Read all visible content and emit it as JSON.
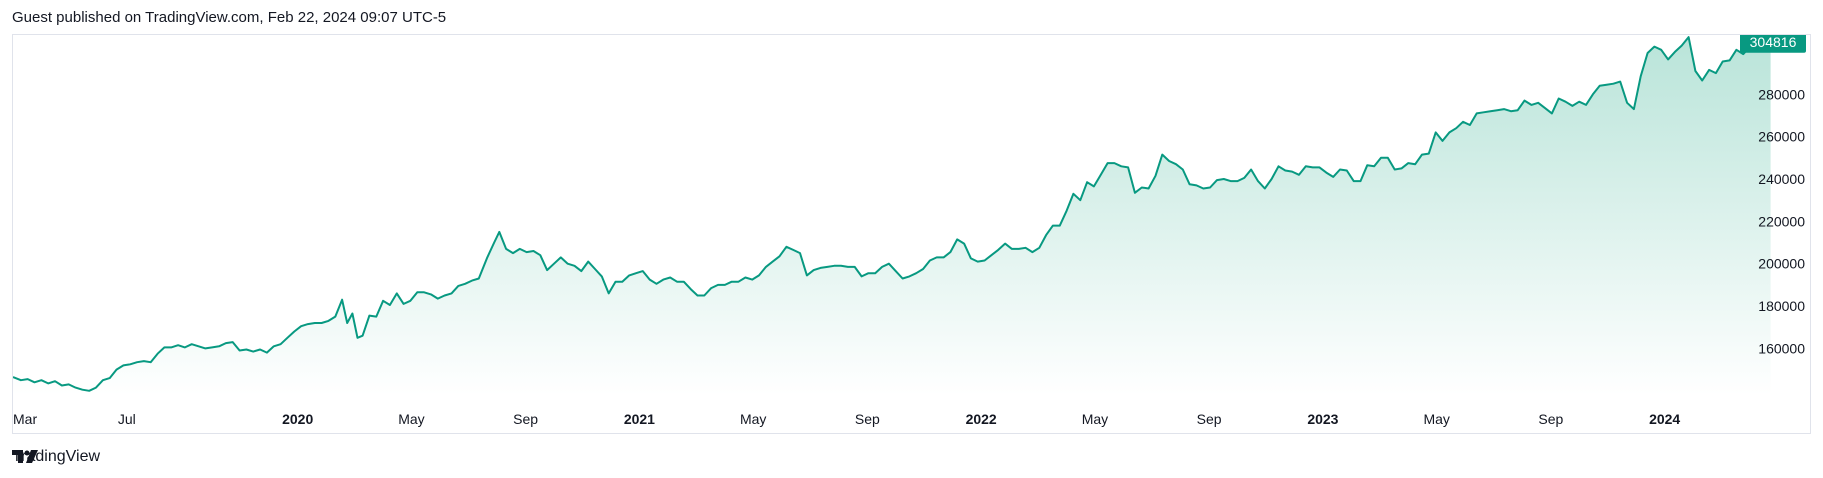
{
  "header": {
    "text": "Guest published on TradingView.com, Feb 22, 2024 09:07 UTC-5"
  },
  "footer": {
    "brand": "TradingView",
    "logo_icon": "tradingview-logo-icon"
  },
  "colors": {
    "line": "#089981",
    "fill_top": "#b9e4d9",
    "fill_bottom": "#ffffff",
    "badge": "#089981"
  },
  "chart_data": {
    "type": "area",
    "title": "",
    "last_value_label": "304816",
    "ylim": [
      138000,
      308000
    ],
    "y_ticks": [
      "160000",
      "180000",
      "200000",
      "220000",
      "240000",
      "260000",
      "280000"
    ],
    "y_tick_values": [
      160000,
      180000,
      200000,
      220000,
      240000,
      260000,
      280000
    ],
    "x_ticks": [
      {
        "label": "Mar",
        "t": 2019.167,
        "bold": false
      },
      {
        "label": "Jul",
        "t": 2019.5,
        "bold": false
      },
      {
        "label": "2020",
        "t": 2020.0,
        "bold": true
      },
      {
        "label": "May",
        "t": 2020.333,
        "bold": false
      },
      {
        "label": "Sep",
        "t": 2020.667,
        "bold": false
      },
      {
        "label": "2021",
        "t": 2021.0,
        "bold": true
      },
      {
        "label": "May",
        "t": 2021.333,
        "bold": false
      },
      {
        "label": "Sep",
        "t": 2021.667,
        "bold": false
      },
      {
        "label": "2022",
        "t": 2022.0,
        "bold": true
      },
      {
        "label": "May",
        "t": 2022.333,
        "bold": false
      },
      {
        "label": "Sep",
        "t": 2022.667,
        "bold": false
      },
      {
        "label": "2023",
        "t": 2023.0,
        "bold": true
      },
      {
        "label": "May",
        "t": 2023.333,
        "bold": false
      },
      {
        "label": "Sep",
        "t": 2023.667,
        "bold": false
      },
      {
        "label": "2024",
        "t": 2024.0,
        "bold": true
      }
    ],
    "xlim": [
      2019.167,
      2024.2
    ],
    "series": [
      {
        "points": [
          [
            2019.167,
            146500
          ],
          [
            2019.19,
            145000
          ],
          [
            2019.21,
            145500
          ],
          [
            2019.23,
            144000
          ],
          [
            2019.25,
            145000
          ],
          [
            2019.27,
            143500
          ],
          [
            2019.29,
            144500
          ],
          [
            2019.31,
            142500
          ],
          [
            2019.33,
            143000
          ],
          [
            2019.35,
            141500
          ],
          [
            2019.37,
            140500
          ],
          [
            2019.39,
            140000
          ],
          [
            2019.41,
            141500
          ],
          [
            2019.43,
            145000
          ],
          [
            2019.45,
            146000
          ],
          [
            2019.47,
            150000
          ],
          [
            2019.49,
            152000
          ],
          [
            2019.51,
            152500
          ],
          [
            2019.53,
            153500
          ],
          [
            2019.55,
            154000
          ],
          [
            2019.57,
            153500
          ],
          [
            2019.59,
            157500
          ],
          [
            2019.61,
            160500
          ],
          [
            2019.63,
            160500
          ],
          [
            2019.65,
            161500
          ],
          [
            2019.67,
            160500
          ],
          [
            2019.69,
            162000
          ],
          [
            2019.71,
            161000
          ],
          [
            2019.73,
            160000
          ],
          [
            2019.75,
            160500
          ],
          [
            2019.77,
            161000
          ],
          [
            2019.79,
            162500
          ],
          [
            2019.81,
            163000
          ],
          [
            2019.83,
            159000
          ],
          [
            2019.85,
            159500
          ],
          [
            2019.87,
            158500
          ],
          [
            2019.89,
            159500
          ],
          [
            2019.91,
            158000
          ],
          [
            2019.93,
            161000
          ],
          [
            2019.95,
            162000
          ],
          [
            2019.97,
            165000
          ],
          [
            2019.99,
            168000
          ],
          [
            2020.01,
            170500
          ],
          [
            2020.03,
            171500
          ],
          [
            2020.05,
            172000
          ],
          [
            2020.07,
            172000
          ],
          [
            2020.09,
            173000
          ],
          [
            2020.11,
            175000
          ],
          [
            2020.13,
            183000
          ],
          [
            2020.145,
            172000
          ],
          [
            2020.16,
            176500
          ],
          [
            2020.175,
            165000
          ],
          [
            2020.19,
            166000
          ],
          [
            2020.21,
            175500
          ],
          [
            2020.23,
            175000
          ],
          [
            2020.25,
            182500
          ],
          [
            2020.27,
            180500
          ],
          [
            2020.29,
            186000
          ],
          [
            2020.31,
            181000
          ],
          [
            2020.33,
            182500
          ],
          [
            2020.35,
            186500
          ],
          [
            2020.37,
            186500
          ],
          [
            2020.39,
            185500
          ],
          [
            2020.41,
            183500
          ],
          [
            2020.43,
            185000
          ],
          [
            2020.45,
            186000
          ],
          [
            2020.47,
            189500
          ],
          [
            2020.49,
            190500
          ],
          [
            2020.51,
            192000
          ],
          [
            2020.53,
            193000
          ],
          [
            2020.555,
            203000
          ],
          [
            2020.575,
            210000
          ],
          [
            2020.59,
            215000
          ],
          [
            2020.61,
            207000
          ],
          [
            2020.63,
            205000
          ],
          [
            2020.65,
            207000
          ],
          [
            2020.67,
            205500
          ],
          [
            2020.69,
            206000
          ],
          [
            2020.71,
            204000
          ],
          [
            2020.73,
            197000
          ],
          [
            2020.75,
            200000
          ],
          [
            2020.77,
            203000
          ],
          [
            2020.79,
            200000
          ],
          [
            2020.81,
            199000
          ],
          [
            2020.83,
            196500
          ],
          [
            2020.85,
            201000
          ],
          [
            2020.87,
            197500
          ],
          [
            2020.89,
            194000
          ],
          [
            2020.91,
            186000
          ],
          [
            2020.93,
            191500
          ],
          [
            2020.95,
            191500
          ],
          [
            2020.97,
            194500
          ],
          [
            2020.99,
            195500
          ],
          [
            2021.01,
            196500
          ],
          [
            2021.03,
            192500
          ],
          [
            2021.05,
            190500
          ],
          [
            2021.07,
            192500
          ],
          [
            2021.09,
            193500
          ],
          [
            2021.11,
            191500
          ],
          [
            2021.13,
            191500
          ],
          [
            2021.15,
            188000
          ],
          [
            2021.17,
            185000
          ],
          [
            2021.19,
            185000
          ],
          [
            2021.21,
            188500
          ],
          [
            2021.23,
            190000
          ],
          [
            2021.25,
            190000
          ],
          [
            2021.27,
            191500
          ],
          [
            2021.29,
            191500
          ],
          [
            2021.31,
            193500
          ],
          [
            2021.33,
            192500
          ],
          [
            2021.35,
            194500
          ],
          [
            2021.37,
            198500
          ],
          [
            2021.39,
            201000
          ],
          [
            2021.41,
            203500
          ],
          [
            2021.43,
            208000
          ],
          [
            2021.45,
            206500
          ],
          [
            2021.47,
            205000
          ],
          [
            2021.49,
            194500
          ],
          [
            2021.51,
            197000
          ],
          [
            2021.53,
            198000
          ],
          [
            2021.55,
            198500
          ],
          [
            2021.57,
            199000
          ],
          [
            2021.59,
            199000
          ],
          [
            2021.61,
            198500
          ],
          [
            2021.63,
            198500
          ],
          [
            2021.65,
            194000
          ],
          [
            2021.67,
            195500
          ],
          [
            2021.69,
            195500
          ],
          [
            2021.71,
            198500
          ],
          [
            2021.73,
            200000
          ],
          [
            2021.75,
            196500
          ],
          [
            2021.77,
            193000
          ],
          [
            2021.79,
            194000
          ],
          [
            2021.81,
            195500
          ],
          [
            2021.83,
            197500
          ],
          [
            2021.85,
            201500
          ],
          [
            2021.87,
            203000
          ],
          [
            2021.89,
            203000
          ],
          [
            2021.91,
            205500
          ],
          [
            2021.93,
            211500
          ],
          [
            2021.95,
            209500
          ],
          [
            2021.97,
            202500
          ],
          [
            2021.99,
            201000
          ],
          [
            2022.01,
            201500
          ],
          [
            2022.03,
            204000
          ],
          [
            2022.05,
            206500
          ],
          [
            2022.07,
            209500
          ],
          [
            2022.09,
            207000
          ],
          [
            2022.11,
            207000
          ],
          [
            2022.13,
            207500
          ],
          [
            2022.15,
            205500
          ],
          [
            2022.17,
            207500
          ],
          [
            2022.19,
            213500
          ],
          [
            2022.21,
            218000
          ],
          [
            2022.23,
            218000
          ],
          [
            2022.25,
            225000
          ],
          [
            2022.27,
            233000
          ],
          [
            2022.29,
            230000
          ],
          [
            2022.31,
            238500
          ],
          [
            2022.33,
            236500
          ],
          [
            2022.35,
            242000
          ],
          [
            2022.37,
            247500
          ],
          [
            2022.39,
            247500
          ],
          [
            2022.41,
            246000
          ],
          [
            2022.43,
            245500
          ],
          [
            2022.45,
            233500
          ],
          [
            2022.47,
            236000
          ],
          [
            2022.49,
            235500
          ],
          [
            2022.51,
            241500
          ],
          [
            2022.53,
            251500
          ],
          [
            2022.55,
            248500
          ],
          [
            2022.57,
            247000
          ],
          [
            2022.59,
            244500
          ],
          [
            2022.61,
            237500
          ],
          [
            2022.63,
            237000
          ],
          [
            2022.65,
            235500
          ],
          [
            2022.67,
            236000
          ],
          [
            2022.69,
            239500
          ],
          [
            2022.71,
            240000
          ],
          [
            2022.73,
            239000
          ],
          [
            2022.75,
            239000
          ],
          [
            2022.77,
            240500
          ],
          [
            2022.79,
            244500
          ],
          [
            2022.81,
            239000
          ],
          [
            2022.83,
            235500
          ],
          [
            2022.85,
            240000
          ],
          [
            2022.87,
            246000
          ],
          [
            2022.89,
            244000
          ],
          [
            2022.91,
            243500
          ],
          [
            2022.93,
            242000
          ],
          [
            2022.95,
            246000
          ],
          [
            2022.97,
            245500
          ],
          [
            2022.99,
            245500
          ],
          [
            2023.01,
            243000
          ],
          [
            2023.03,
            241000
          ],
          [
            2023.05,
            244500
          ],
          [
            2023.07,
            244000
          ],
          [
            2023.09,
            239000
          ],
          [
            2023.11,
            239000
          ],
          [
            2023.13,
            246500
          ],
          [
            2023.15,
            246000
          ],
          [
            2023.17,
            250000
          ],
          [
            2023.19,
            250000
          ],
          [
            2023.21,
            244500
          ],
          [
            2023.23,
            245000
          ],
          [
            2023.25,
            247500
          ],
          [
            2023.27,
            247000
          ],
          [
            2023.29,
            251500
          ],
          [
            2023.31,
            252000
          ],
          [
            2023.33,
            262000
          ],
          [
            2023.35,
            258000
          ],
          [
            2023.37,
            262000
          ],
          [
            2023.39,
            264000
          ],
          [
            2023.41,
            267000
          ],
          [
            2023.43,
            265500
          ],
          [
            2023.45,
            271000
          ],
          [
            2023.47,
            271500
          ],
          [
            2023.49,
            272000
          ],
          [
            2023.51,
            272500
          ],
          [
            2023.53,
            273000
          ],
          [
            2023.55,
            272000
          ],
          [
            2023.57,
            272500
          ],
          [
            2023.59,
            277000
          ],
          [
            2023.61,
            275000
          ],
          [
            2023.63,
            276000
          ],
          [
            2023.65,
            273500
          ],
          [
            2023.67,
            271000
          ],
          [
            2023.69,
            278000
          ],
          [
            2023.71,
            276500
          ],
          [
            2023.73,
            274500
          ],
          [
            2023.75,
            276500
          ],
          [
            2023.77,
            275000
          ],
          [
            2023.79,
            280000
          ],
          [
            2023.81,
            284000
          ],
          [
            2023.83,
            284500
          ],
          [
            2023.85,
            285000
          ],
          [
            2023.87,
            286000
          ],
          [
            2023.89,
            276000
          ],
          [
            2023.91,
            273000
          ],
          [
            2023.93,
            288500
          ],
          [
            2023.95,
            299500
          ],
          [
            2023.97,
            302500
          ],
          [
            2023.99,
            301000
          ],
          [
            2024.01,
            296500
          ],
          [
            2024.03,
            300000
          ],
          [
            2024.05,
            303000
          ],
          [
            2024.07,
            307000
          ],
          [
            2024.09,
            291000
          ],
          [
            2024.11,
            286500
          ],
          [
            2024.13,
            291500
          ],
          [
            2024.15,
            290000
          ],
          [
            2024.17,
            295500
          ],
          [
            2024.19,
            296000
          ],
          [
            2024.21,
            301000
          ],
          [
            2024.23,
            299000
          ],
          [
            2024.25,
            302500
          ],
          [
            2024.27,
            302000
          ],
          [
            2024.29,
            302500
          ],
          [
            2024.31,
            304816
          ]
        ]
      }
    ]
  }
}
